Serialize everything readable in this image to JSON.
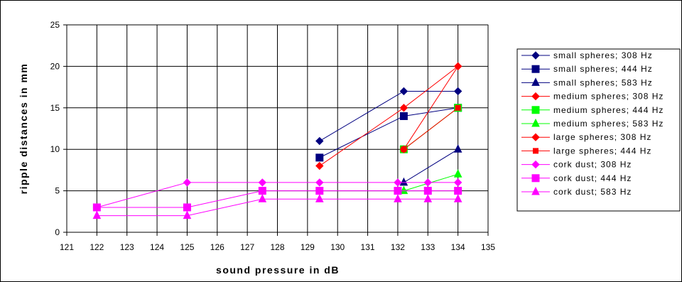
{
  "chart_data": {
    "type": "line",
    "xlabel": "sound pressure in dB",
    "ylabel": "ripple distances in mm",
    "xlim": [
      121,
      135
    ],
    "ylim": [
      0,
      25
    ],
    "xticks": [
      121,
      122,
      123,
      124,
      125,
      126,
      127,
      128,
      129,
      130,
      131,
      132,
      133,
      134,
      135
    ],
    "yticks": [
      0,
      5,
      10,
      15,
      20,
      25
    ],
    "grid": true,
    "legend_position": "right",
    "series": [
      {
        "name": "small spheres; 308 Hz",
        "color": "#000080",
        "marker": "diamond",
        "points": [
          [
            129.4,
            11
          ],
          [
            132.2,
            17
          ],
          [
            134,
            17
          ]
        ]
      },
      {
        "name": "small spheres; 444 Hz",
        "color": "#000080",
        "marker": "square",
        "points": [
          [
            129.4,
            9
          ],
          [
            132.2,
            14
          ],
          [
            134,
            15
          ]
        ]
      },
      {
        "name": "small spheres; 583 Hz",
        "color": "#000080",
        "marker": "triangle",
        "points": [
          [
            132.2,
            6
          ],
          [
            134,
            10
          ]
        ]
      },
      {
        "name": "medium spheres; 308 Hz",
        "color": "#FF0000",
        "marker": "diamond",
        "points": [
          [
            129.4,
            8
          ],
          [
            132.2,
            15
          ],
          [
            134,
            20
          ]
        ]
      },
      {
        "name": "medium spheres; 444 Hz",
        "color": "#00FF00",
        "marker": "square",
        "points": [
          [
            132.2,
            10
          ],
          [
            134,
            15
          ]
        ]
      },
      {
        "name": "medium spheres; 583 Hz",
        "color": "#00FF00",
        "marker": "triangle",
        "points": [
          [
            132.2,
            5
          ],
          [
            134,
            7
          ]
        ]
      },
      {
        "name": "large spheres; 308 Hz",
        "color": "#FF0000",
        "marker": "diamond",
        "points": [
          [
            132.2,
            10
          ],
          [
            134,
            20
          ]
        ]
      },
      {
        "name": "large spheres; 444 Hz",
        "color": "#FF0000",
        "marker": "smallsquare",
        "points": [
          [
            132.2,
            10
          ],
          [
            134,
            15
          ]
        ]
      },
      {
        "name": "cork dust; 308 Hz",
        "color": "#FF00FF",
        "marker": "diamond",
        "points": [
          [
            122,
            3
          ],
          [
            125,
            6
          ],
          [
            127.5,
            6
          ],
          [
            129.4,
            6
          ],
          [
            132,
            6
          ],
          [
            133,
            6
          ],
          [
            134,
            6
          ]
        ]
      },
      {
        "name": "cork dust; 444 Hz",
        "color": "#FF00FF",
        "marker": "square",
        "points": [
          [
            122,
            3
          ],
          [
            125,
            3
          ],
          [
            127.5,
            5
          ],
          [
            129.4,
            5
          ],
          [
            132,
            5
          ],
          [
            133,
            5
          ],
          [
            134,
            5
          ]
        ]
      },
      {
        "name": "cork dust; 583 Hz",
        "color": "#FF00FF",
        "marker": "triangle",
        "points": [
          [
            122,
            2
          ],
          [
            125,
            2
          ],
          [
            127.5,
            4
          ],
          [
            129.4,
            4
          ],
          [
            132,
            4
          ],
          [
            133,
            4
          ],
          [
            134,
            4
          ]
        ]
      }
    ]
  }
}
